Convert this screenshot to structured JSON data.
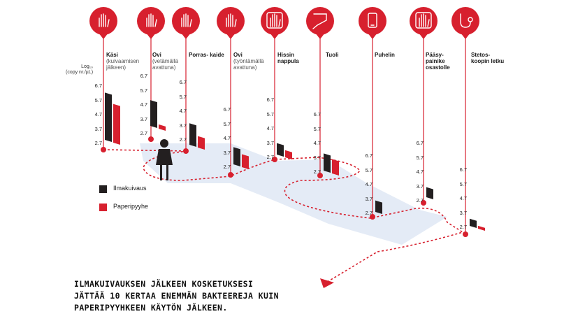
{
  "colors": {
    "accent": "#d7202e",
    "dark": "#231f20",
    "floor": "#e4ebf6"
  },
  "y_axis_label": {
    "line1": "Log₁₀",
    "line2": "(copy nr./µL)"
  },
  "legend": [
    {
      "label": "Ilmakuivaus",
      "color": "#231f20"
    },
    {
      "label": "Paperipyyhe",
      "color": "#d7202e"
    }
  ],
  "conclusion": [
    "ILMAKUIVAUKSEN JÄLKEEN KOSKETUKSESI",
    "JÄTTÄÄ 10 KERTAA ENEMMÄN BAKTEEREJA KUIN",
    "PAPERIPYYHKEEN KÄYTÖN JÄLKEEN."
  ],
  "chart_data": {
    "type": "bar",
    "ylabel": "Log₁₀ (copy nr./µL)",
    "ylim": [
      2.7,
      6.7
    ],
    "yticks": [
      "6.7",
      "5.7",
      "4.7",
      "3.7",
      "2.7"
    ],
    "series": [
      {
        "name": "Ilmakuivaus",
        "values": [
          6.0,
          4.5,
          4.2,
          3.9,
          3.5,
          3.9,
          3.5,
          3.4,
          3.2
        ]
      },
      {
        "name": "Paperipyyhe",
        "values": [
          5.4,
          3.0,
          3.5,
          3.6,
          3.2,
          3.7,
          null,
          null,
          2.9
        ]
      }
    ],
    "stations": [
      {
        "icon": "hand-icon",
        "title": "Käsi",
        "sub": "(kuivaamisen jälkeen)"
      },
      {
        "icon": "door-pull-icon",
        "title": "Ovi",
        "sub": "(vetämällä avattuna)"
      },
      {
        "icon": "handrail-icon",
        "title": "Porras- kaide",
        "sub": ""
      },
      {
        "icon": "door-push-icon",
        "title": "Ovi",
        "sub": "(työntämällä avattuna)"
      },
      {
        "icon": "elevator-button-icon",
        "title": "Hissin nappula",
        "sub": ""
      },
      {
        "icon": "chair-icon",
        "title": "Tuoli",
        "sub": ""
      },
      {
        "icon": "phone-icon",
        "title": "Puhelin",
        "sub": ""
      },
      {
        "icon": "access-button-icon",
        "title": "Pääsy- painike osastolle",
        "sub": ""
      },
      {
        "icon": "stethoscope-icon",
        "title": "Stetos- koopin letku",
        "sub": ""
      }
    ]
  }
}
